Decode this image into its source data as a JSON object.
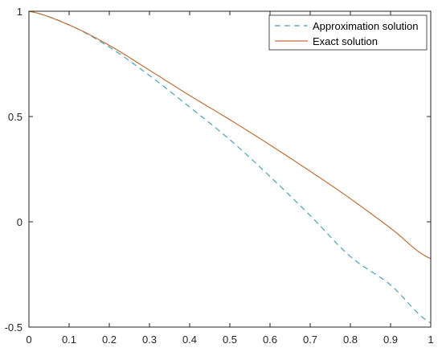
{
  "chart_data": {
    "type": "line",
    "xlim": [
      0,
      1
    ],
    "ylim": [
      -0.5,
      1
    ],
    "xticks": [
      "0",
      "0.1",
      "0.2",
      "0.3",
      "0.4",
      "0.5",
      "0.6",
      "0.7",
      "0.8",
      "0.9",
      "1"
    ],
    "yticks": [
      "-0.5",
      "0",
      "0.5",
      "1"
    ],
    "grid": false,
    "legend": "top-right",
    "series": [
      {
        "name": "Approximation solution",
        "style": "dashed",
        "color": "#4aa3b5",
        "x": [
          0,
          0.1,
          0.2,
          0.3,
          0.4,
          0.5,
          0.6,
          0.7,
          0.8,
          0.9,
          1
        ],
        "y": [
          1,
          0.935,
          0.83,
          0.695,
          0.545,
          0.39,
          0.215,
          0.03,
          -0.165,
          -0.3,
          -0.48
        ]
      },
      {
        "name": "Exact solution",
        "style": "solid",
        "color": "#c0703a",
        "x": [
          0,
          0.1,
          0.2,
          0.3,
          0.4,
          0.5,
          0.6,
          0.7,
          0.8,
          0.9,
          1
        ],
        "y": [
          1,
          0.935,
          0.838,
          0.72,
          0.6,
          0.485,
          0.365,
          0.24,
          0.11,
          -0.03,
          -0.175
        ]
      }
    ]
  }
}
